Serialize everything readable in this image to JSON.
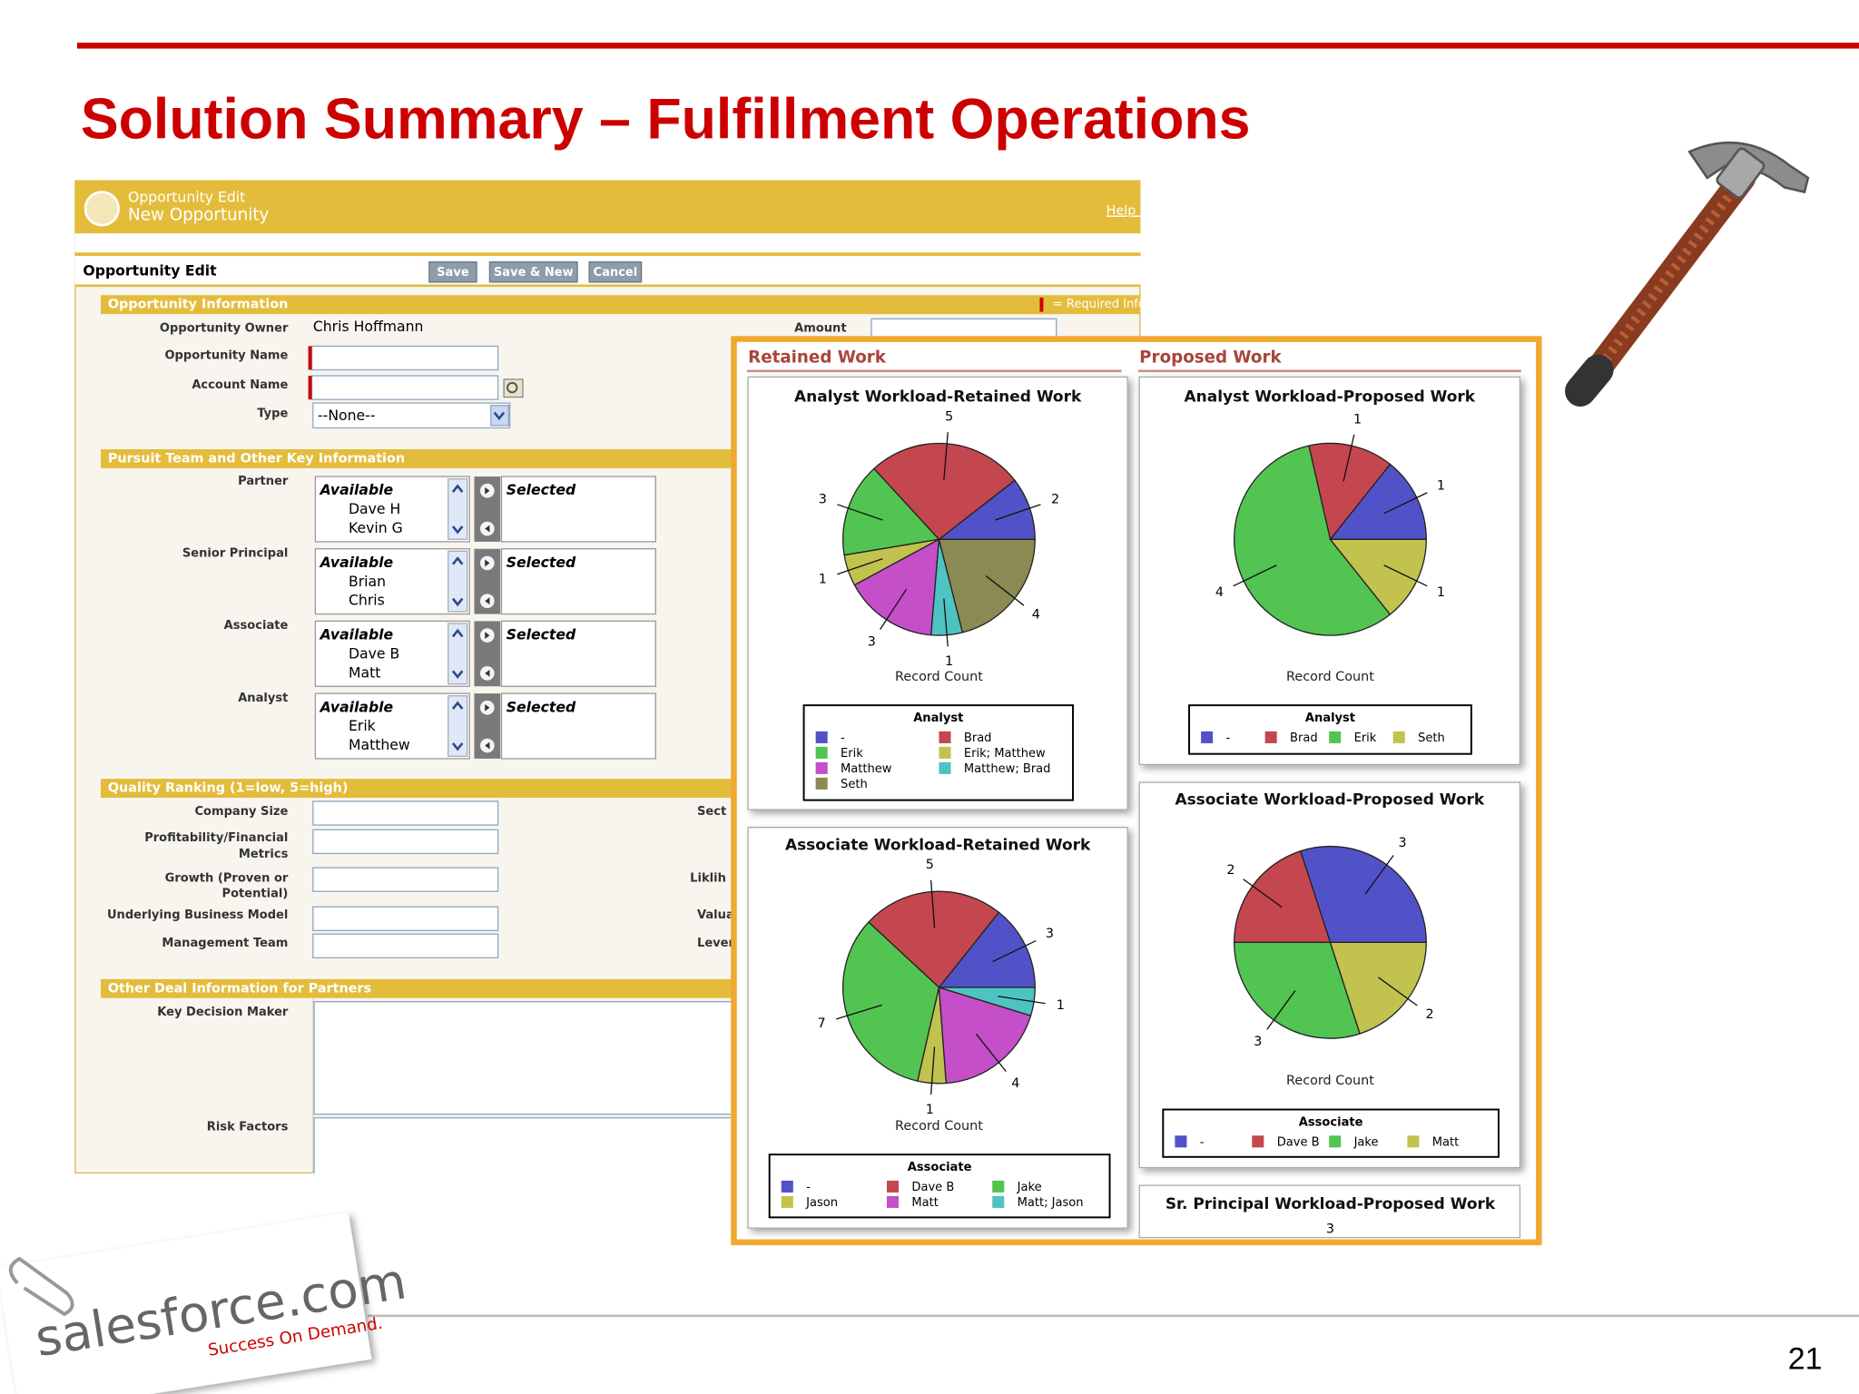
{
  "title": "Solution Summary – Fulfillment Operations",
  "page_number": "21",
  "logo": {
    "name": "salesforce.com",
    "tagline": "Success On Demand."
  },
  "form": {
    "header": {
      "line1": "Opportunity Edit",
      "line2": "New Opportunity",
      "help": "Help f"
    },
    "toolbar": {
      "title": "Opportunity Edit",
      "buttons": [
        "Save",
        "Save & New",
        "Cancel"
      ]
    },
    "required_note": "= Required Info",
    "opportunity_information": {
      "title": "Opportunity Information",
      "fields": [
        {
          "label": "Opportunity Owner",
          "value": "Chris Hoffmann"
        },
        {
          "label": "Opportunity Name"
        },
        {
          "label": "Account Name"
        },
        {
          "label": "Type",
          "value": "--None--"
        }
      ],
      "right_label": "Amount"
    },
    "pursuit_team": {
      "title": "Pursuit Team and Other Key Information",
      "pickers": [
        {
          "label": "Partner",
          "available_heading": "Available",
          "options": [
            "Dave H",
            "Kevin G"
          ],
          "selected_heading": "Selected"
        },
        {
          "label": "Senior Principal",
          "available_heading": "Available",
          "options": [
            "Brian",
            "Chris"
          ],
          "selected_heading": "Selected"
        },
        {
          "label": "Associate",
          "available_heading": "Available",
          "options": [
            "Dave B",
            "Matt"
          ],
          "selected_heading": "Selected"
        },
        {
          "label": "Analyst",
          "available_heading": "Available",
          "options": [
            "Erik",
            "Matthew"
          ],
          "selected_heading": "Selected"
        }
      ]
    },
    "quality_ranking": {
      "title": "Quality Ranking (1=low, 5=high)",
      "fields": [
        {
          "label": [
            "Company Size"
          ]
        },
        {
          "label": [
            "Profitability/Financial",
            "Metrics"
          ]
        },
        {
          "label": [
            "Growth (Proven or",
            "Potential)"
          ]
        },
        {
          "label": [
            "Underlying Business Model"
          ]
        },
        {
          "label": [
            "Management Team"
          ]
        }
      ],
      "right_labels": [
        "Sect",
        "Liklih",
        "Valua",
        "Levera"
      ]
    },
    "other_deal": {
      "title": "Other Deal Information for Partners",
      "fields": [
        {
          "label": "Key Decision Maker"
        },
        {
          "label": "Risk Factors"
        }
      ]
    }
  },
  "panel": {
    "retained_heading": "Retained Work",
    "proposed_heading": "Proposed Work"
  },
  "chart_data": [
    {
      "type": "pie",
      "title": "Analyst Workload-Retained Work",
      "xlabel": "Record Count",
      "legend_title": "Analyst",
      "categories": [
        "-",
        "Brad",
        "Erik",
        "Erik; Matthew",
        "Matthew",
        "Matthew; Brad",
        "Seth"
      ],
      "values": [
        2,
        5,
        3,
        1,
        3,
        1,
        4
      ],
      "colors": [
        "#5252c8",
        "#c4474f",
        "#52c452",
        "#c2c24e",
        "#c44fc8",
        "#4fc2c2",
        "#8a8a52"
      ]
    },
    {
      "type": "pie",
      "title": "Analyst Workload-Proposed Work",
      "xlabel": "Record Count",
      "legend_title": "Analyst",
      "categories": [
        "-",
        "Brad",
        "Erik",
        "Seth"
      ],
      "values": [
        1,
        1,
        4,
        1
      ],
      "colors": [
        "#5252c8",
        "#c4474f",
        "#52c452",
        "#c2c24e"
      ]
    },
    {
      "type": "pie",
      "title": "Associate Workload-Retained Work",
      "xlabel": "Record Count",
      "legend_title": "Associate",
      "categories": [
        "-",
        "Dave B",
        "Jake",
        "Jason",
        "Matt",
        "Matt; Jason"
      ],
      "values": [
        3,
        5,
        7,
        1,
        4,
        1
      ],
      "colors": [
        "#5252c8",
        "#c4474f",
        "#52c452",
        "#c2c24e",
        "#c44fc8",
        "#4fc2c2"
      ]
    },
    {
      "type": "pie",
      "title": "Associate Workload-Proposed Work",
      "xlabel": "Record Count",
      "legend_title": "Associate",
      "categories": [
        "-",
        "Dave B",
        "Jake",
        "Matt"
      ],
      "values": [
        3,
        2,
        3,
        2
      ],
      "colors": [
        "#5252c8",
        "#c4474f",
        "#52c452",
        "#c2c24e"
      ]
    }
  ],
  "partial_chart": {
    "title": "Sr. Principal Workload-Proposed Work",
    "visible_label": "3"
  }
}
